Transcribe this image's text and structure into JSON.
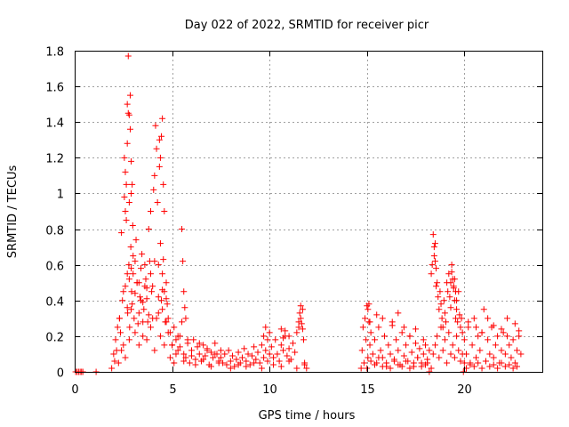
{
  "chart_data": {
    "type": "scatter",
    "title": "Day 022 of 2022, SRMTID for receiver picr",
    "xlabel": "GPS time / hours",
    "ylabel": "SRMTID / TECUs",
    "xlim": [
      0,
      24
    ],
    "ylim": [
      0,
      1.8
    ],
    "xticks": [
      0,
      5,
      10,
      15,
      20
    ],
    "xtick_labels": [
      "0",
      "5",
      "10",
      "15",
      "20"
    ],
    "yticks": [
      0,
      0.2,
      0.4,
      0.6,
      0.8,
      1.0,
      1.2,
      1.4,
      1.6,
      1.8
    ],
    "ytick_labels": [
      "0",
      "0.2",
      "0.4",
      "0.6",
      "0.8",
      "1",
      "1.2",
      "1.4",
      "1.6",
      "1.8"
    ],
    "grid": true,
    "marker": "+",
    "color": "#ff0000",
    "series": [
      {
        "name": "SRMTID",
        "x": [
          0.05,
          0.12,
          0.2,
          0.28,
          0.35,
          0.42,
          1.1,
          1.9,
          2.0,
          2.05,
          2.1,
          2.15,
          2.2,
          2.25,
          2.3,
          2.35,
          2.4,
          2.45,
          2.5,
          2.55,
          2.6,
          2.65,
          2.7,
          2.72,
          2.75,
          2.78,
          2.8,
          2.82,
          2.85,
          2.88,
          2.9,
          2.92,
          2.95,
          2.98,
          3.0,
          3.05,
          3.1,
          3.15,
          3.2,
          3.25,
          3.3,
          3.35,
          3.4,
          3.45,
          3.5,
          3.55,
          3.6,
          3.65,
          3.7,
          3.75,
          3.8,
          3.85,
          3.9,
          3.95,
          4.0,
          4.05,
          4.1,
          4.15,
          4.2,
          4.25,
          4.3,
          4.35,
          4.4,
          4.45,
          4.5,
          4.55,
          4.6,
          4.65,
          4.7,
          4.75,
          4.8,
          2.3,
          2.4,
          2.5,
          2.6,
          2.7,
          2.8,
          2.9,
          3.0,
          3.1,
          3.2,
          3.3,
          3.4,
          3.5,
          3.6,
          3.7,
          3.8,
          3.9,
          4.0,
          4.1,
          4.2,
          4.3,
          4.4,
          4.5,
          4.6,
          4.7,
          2.55,
          2.6,
          2.65,
          2.7,
          2.75,
          2.8,
          2.85,
          2.9,
          2.95,
          4.35,
          4.4,
          4.45,
          4.5,
          4.55,
          4.6,
          2.6,
          2.7,
          2.8,
          2.9,
          3.1,
          3.3,
          3.5,
          3.7,
          3.9,
          4.1,
          4.3,
          4.5,
          4.7,
          4.8,
          4.9,
          5.0,
          5.1,
          5.2,
          5.3,
          5.4,
          5.5,
          5.6,
          5.7,
          5.8,
          5.9,
          6.0,
          6.1,
          6.2,
          6.3,
          6.4,
          6.5,
          6.6,
          6.7,
          6.8,
          6.9,
          7.0,
          7.1,
          7.2,
          7.3,
          7.4,
          7.5,
          5.5,
          5.55,
          5.6,
          5.65,
          5.7,
          4.9,
          5.0,
          5.1,
          5.2,
          5.3,
          5.4,
          5.6,
          5.8,
          6.0,
          6.2,
          6.4,
          6.6,
          6.8,
          7.0,
          7.2,
          7.4,
          7.5,
          7.6,
          7.7,
          7.8,
          7.9,
          8.0,
          8.1,
          8.2,
          8.3,
          8.4,
          8.5,
          8.6,
          8.7,
          8.8,
          8.9,
          9.0,
          9.1,
          9.2,
          9.3,
          9.4,
          9.5,
          9.6,
          9.7,
          9.8,
          9.9,
          10.0,
          10.1,
          10.2,
          10.3,
          10.4,
          10.5,
          10.6,
          10.7,
          10.8,
          10.9,
          11.0,
          11.1,
          11.2,
          11.3,
          11.4,
          11.5,
          11.6,
          11.7,
          11.8,
          11.9,
          9.7,
          9.8,
          9.9,
          10.0,
          10.6,
          10.7,
          10.8,
          11.0,
          11.5,
          11.55,
          11.6,
          11.65,
          11.7,
          11.75,
          8.0,
          8.4,
          8.8,
          9.2,
          9.6,
          10.2,
          10.6,
          11.0,
          11.4,
          11.8,
          14.7,
          14.75,
          14.8,
          14.85,
          14.9,
          14.95,
          15.0,
          15.05,
          15.1,
          15.15,
          15.2,
          15.3,
          15.4,
          15.5,
          15.6,
          15.7,
          15.8,
          15.9,
          16.0,
          16.1,
          16.2,
          16.3,
          16.4,
          16.5,
          16.6,
          16.7,
          16.8,
          16.9,
          17.0,
          17.1,
          17.2,
          17.3,
          17.4,
          17.5,
          17.6,
          17.7,
          17.8,
          17.9,
          18.0,
          18.1,
          18.2,
          15.0,
          15.2,
          15.4,
          15.6,
          15.8,
          16.0,
          16.2,
          16.4,
          16.6,
          16.8,
          17.0,
          17.2,
          17.4,
          17.6,
          17.8,
          18.0,
          15.05,
          15.1,
          15.15,
          15.5,
          15.8,
          16.3,
          16.6,
          16.9,
          17.2,
          17.5,
          17.9,
          18.3,
          18.35,
          18.4,
          18.45,
          18.5,
          18.55,
          18.6,
          18.65,
          18.7,
          18.75,
          18.8,
          18.85,
          18.9,
          18.95,
          19.0,
          19.05,
          19.1,
          19.15,
          19.2,
          19.25,
          19.3,
          19.35,
          19.4,
          19.45,
          19.5,
          19.55,
          19.6,
          19.65,
          19.7,
          19.75,
          19.8,
          19.85,
          19.9,
          18.4,
          18.5,
          18.6,
          18.7,
          18.8,
          18.9,
          19.0,
          19.1,
          19.2,
          19.3,
          19.4,
          19.5,
          19.6,
          19.7,
          19.8,
          18.45,
          18.5,
          18.55,
          19.3,
          19.35,
          19.45,
          19.5,
          19.55,
          19.6,
          20.0,
          20.1,
          20.2,
          20.3,
          20.4,
          20.5,
          20.6,
          20.7,
          20.8,
          20.9,
          21.0,
          21.1,
          21.2,
          21.3,
          21.4,
          21.5,
          21.6,
          21.7,
          21.8,
          21.9,
          22.0,
          22.1,
          22.2,
          22.3,
          22.4,
          22.5,
          22.6,
          22.7,
          22.8,
          22.9,
          20.1,
          20.3,
          20.5,
          20.7,
          20.9,
          21.1,
          21.3,
          21.5,
          21.7,
          21.9,
          22.1,
          22.3,
          22.5,
          22.7,
          20.2,
          20.6,
          20.9,
          21.2,
          21.5,
          21.9,
          22.2,
          22.6,
          22.8,
          18.2,
          18.3,
          18.1,
          19.9,
          20.0,
          19.95
        ],
        "y": [
          0.0,
          0.0,
          0.0,
          0.0,
          0.0,
          0.0,
          0.0,
          0.02,
          0.1,
          0.06,
          0.18,
          0.12,
          0.25,
          0.05,
          0.3,
          0.22,
          0.78,
          0.4,
          0.15,
          1.2,
          0.9,
          1.05,
          1.5,
          0.33,
          1.77,
          0.6,
          1.44,
          0.25,
          1.55,
          0.7,
          1.0,
          0.45,
          0.38,
          0.82,
          0.55,
          0.3,
          0.62,
          0.74,
          0.5,
          0.27,
          0.33,
          0.42,
          0.58,
          0.66,
          0.2,
          0.35,
          0.48,
          0.52,
          0.41,
          0.28,
          0.8,
          0.62,
          0.9,
          0.45,
          0.3,
          1.02,
          1.1,
          1.38,
          1.25,
          0.95,
          0.6,
          1.3,
          0.72,
          0.4,
          0.55,
          0.63,
          0.45,
          0.28,
          0.5,
          0.38,
          0.22,
          0.3,
          0.12,
          0.45,
          0.08,
          0.55,
          0.18,
          0.35,
          0.65,
          0.22,
          0.5,
          0.15,
          0.4,
          0.28,
          0.6,
          0.18,
          0.32,
          0.25,
          0.48,
          0.12,
          0.3,
          0.42,
          0.2,
          0.35,
          0.15,
          0.28,
          0.98,
          1.12,
          0.85,
          1.28,
          1.45,
          0.95,
          1.36,
          1.18,
          1.05,
          1.15,
          1.2,
          1.32,
          1.42,
          1.05,
          0.9,
          0.48,
          0.36,
          0.52,
          0.58,
          0.44,
          0.5,
          0.39,
          0.47,
          0.55,
          0.62,
          0.33,
          0.46,
          0.41,
          0.3,
          0.22,
          0.15,
          0.25,
          0.18,
          0.12,
          0.2,
          0.28,
          0.1,
          0.08,
          0.16,
          0.05,
          0.12,
          0.18,
          0.07,
          0.14,
          0.1,
          0.06,
          0.15,
          0.09,
          0.13,
          0.04,
          0.11,
          0.08,
          0.16,
          0.1,
          0.05,
          0.12,
          0.8,
          0.62,
          0.45,
          0.36,
          0.3,
          0.08,
          0.15,
          0.05,
          0.1,
          0.2,
          0.14,
          0.06,
          0.18,
          0.09,
          0.04,
          0.16,
          0.07,
          0.12,
          0.03,
          0.1,
          0.06,
          0.08,
          0.05,
          0.1,
          0.04,
          0.12,
          0.06,
          0.09,
          0.03,
          0.07,
          0.11,
          0.05,
          0.08,
          0.13,
          0.06,
          0.1,
          0.04,
          0.09,
          0.14,
          0.07,
          0.11,
          0.05,
          0.15,
          0.08,
          0.12,
          0.06,
          0.1,
          0.14,
          0.08,
          0.18,
          0.1,
          0.06,
          0.15,
          0.12,
          0.2,
          0.09,
          0.13,
          0.07,
          0.16,
          0.11,
          0.22,
          0.25,
          0.3,
          0.35,
          0.05,
          0.02,
          0.2,
          0.25,
          0.18,
          0.22,
          0.24,
          0.19,
          0.23,
          0.2,
          0.28,
          0.33,
          0.37,
          0.27,
          0.24,
          0.18,
          0.02,
          0.04,
          0.03,
          0.05,
          0.02,
          0.04,
          0.03,
          0.06,
          0.02,
          0.04,
          0.02,
          0.12,
          0.25,
          0.05,
          0.3,
          0.18,
          0.37,
          0.08,
          0.28,
          0.15,
          0.22,
          0.1,
          0.18,
          0.05,
          0.25,
          0.12,
          0.08,
          0.2,
          0.03,
          0.15,
          0.1,
          0.28,
          0.06,
          0.18,
          0.12,
          0.04,
          0.22,
          0.09,
          0.15,
          0.06,
          0.2,
          0.11,
          0.03,
          0.16,
          0.08,
          0.13,
          0.05,
          0.1,
          0.15,
          0.07,
          0.12,
          0.02,
          0.06,
          0.04,
          0.08,
          0.03,
          0.05,
          0.02,
          0.07,
          0.04,
          0.03,
          0.06,
          0.02,
          0.05,
          0.08,
          0.03,
          0.04,
          0.35,
          0.38,
          0.28,
          0.32,
          0.3,
          0.26,
          0.33,
          0.25,
          0.2,
          0.24,
          0.18,
          0.55,
          0.6,
          0.77,
          0.7,
          0.62,
          0.48,
          0.5,
          0.42,
          0.35,
          0.45,
          0.38,
          0.3,
          0.25,
          0.4,
          0.33,
          0.28,
          0.5,
          0.45,
          0.55,
          0.42,
          0.36,
          0.6,
          0.52,
          0.47,
          0.4,
          0.3,
          0.35,
          0.28,
          0.45,
          0.32,
          0.25,
          0.3,
          0.22,
          0.1,
          0.15,
          0.2,
          0.08,
          0.25,
          0.12,
          0.18,
          0.05,
          0.22,
          0.1,
          0.15,
          0.08,
          0.2,
          0.12,
          0.06,
          0.65,
          0.72,
          0.58,
          0.5,
          0.56,
          0.48,
          0.52,
          0.45,
          0.4,
          0.18,
          0.1,
          0.25,
          0.05,
          0.15,
          0.3,
          0.08,
          0.2,
          0.12,
          0.22,
          0.35,
          0.06,
          0.18,
          0.1,
          0.25,
          0.08,
          0.15,
          0.2,
          0.05,
          0.12,
          0.22,
          0.1,
          0.3,
          0.15,
          0.08,
          0.18,
          0.05,
          0.12,
          0.2,
          0.1,
          0.02,
          0.04,
          0.03,
          0.05,
          0.02,
          0.06,
          0.03,
          0.04,
          0.02,
          0.05,
          0.03,
          0.04,
          0.02,
          0.03,
          0.28,
          0.25,
          0.22,
          0.3,
          0.26,
          0.24,
          0.2,
          0.27,
          0.23,
          0.0,
          0.02,
          0.05,
          0.1,
          0.05,
          0.0
        ]
      }
    ]
  }
}
